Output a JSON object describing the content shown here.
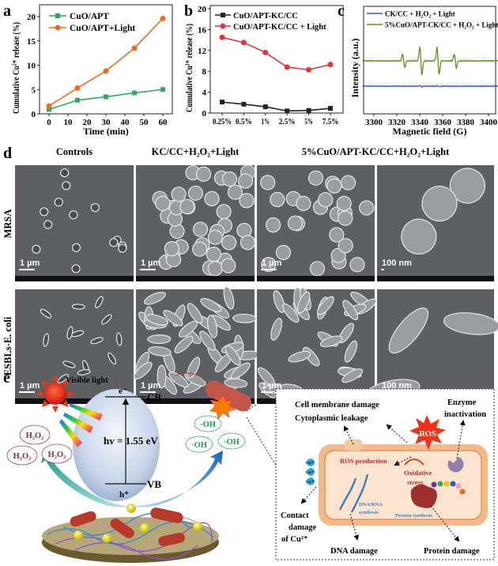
{
  "panel_labels": {
    "a": "a",
    "b": "b",
    "c": "c",
    "d": "d",
    "e": "e"
  },
  "chart_data": [
    {
      "panel": "a",
      "type": "line",
      "xlabel": "Time (min)",
      "ylabel": "Cumulative Cu²⁺ release (%)",
      "xlim": [
        -5,
        66
      ],
      "ylim": [
        0,
        22
      ],
      "xticks": [
        0,
        10,
        20,
        30,
        40,
        50,
        60
      ],
      "yticks": [
        0,
        5,
        10,
        15,
        20
      ],
      "legend": "top-left",
      "x": [
        0,
        15,
        30,
        45,
        60
      ],
      "series": [
        {
          "name": "CuO/APT",
          "color": "#2eaa5e",
          "marker": "square",
          "values": [
            0.9,
            2.8,
            3.5,
            4.3,
            5.0
          ]
        },
        {
          "name": "CuO/APT+Light",
          "color": "#f26b1d",
          "marker": "circle",
          "values": [
            1.6,
            5.3,
            8.8,
            13.5,
            19.6
          ]
        }
      ]
    },
    {
      "panel": "b",
      "type": "line",
      "xlabel": "",
      "ylabel": "Cumulative Cu²⁺ release (%)",
      "ylim": [
        0,
        20
      ],
      "yticks": [
        0,
        4,
        8,
        12,
        16,
        20
      ],
      "legend": "top",
      "categories": [
        "0.25%",
        "0.5%",
        "1%",
        "2.5%",
        "5%",
        "7.5%"
      ],
      "series": [
        {
          "name": "CuO/APT-KC/CC",
          "color": "#222222",
          "marker": "square",
          "values": [
            2.1,
            1.7,
            1.2,
            0.4,
            0.5,
            0.9
          ]
        },
        {
          "name": "CuO/APT-KC/CC + Light",
          "color": "#e8313a",
          "marker": "circle",
          "values": [
            14.5,
            13.5,
            11.6,
            8.8,
            8.3,
            9.3
          ]
        }
      ]
    },
    {
      "panel": "c",
      "type": "line",
      "xlabel": "Magnetic field (G)",
      "ylabel": "Intensity (a.u.)",
      "xlim": [
        3290,
        3410
      ],
      "xticks": [
        3300,
        3320,
        3340,
        3360,
        3380,
        3400
      ],
      "legend": "top",
      "series": [
        {
          "name": "CK/CC + H₂O₂ + Light",
          "color": "#2f5fd6",
          "peaks_G": [
            3341,
            3356
          ],
          "relative_amplitude": [
            0.08,
            0.08
          ]
        },
        {
          "name": "5%CuO/APT-CK/CC + H₂O₂ + Light",
          "color": "#5e8f1a",
          "peaks_G": [
            3326,
            3341,
            3356,
            3371
          ],
          "relative_amplitude": [
            1,
            2,
            2,
            1
          ]
        }
      ]
    }
  ],
  "sem": {
    "columns": [
      "Controls",
      "KC/CC+H₂O₂+Light",
      "5%CuO/APT-KC/CC+H₂O₂+Light"
    ],
    "rows": [
      "MRSA",
      "ESBLs-E. coli"
    ],
    "scale_bars": [
      [
        "1 µm",
        "1 µm",
        "1 µm",
        "100 nm"
      ],
      [
        "1 µm",
        "1 µm",
        "1 µm",
        "100 nm"
      ]
    ]
  },
  "scheme": {
    "visible_light": "Visible light",
    "e_minus": "e⁻",
    "cb": "CB",
    "vb": "VB",
    "h_plus": "h⁺",
    "energy": "hv = 1.55 eV",
    "h2o2": [
      "H₂O₂",
      "H₂O₂",
      "H₂O₂"
    ],
    "oh": [
      "·OH",
      "·OH",
      "·OH"
    ],
    "cell_membrane": "Cell membrane damage",
    "cytoplasmic": "Cytoplasmic leakage",
    "ros": "ROS",
    "enzyme": "Enzyme",
    "inactivation": "inactivation",
    "ros_production": "ROS production",
    "oxidative": "Oxidative",
    "stress": "stress",
    "cu_ions": [
      "Cu²⁺",
      "Cu²⁺",
      "Cu²⁺"
    ],
    "contact": "Contact",
    "damage": "damage",
    "of_cu": "of Cu²⁺",
    "dna_rna": "DNA/RNA",
    "synthesis": "synthesis",
    "protein_synthesis": "Protein synthesis",
    "dna_damage": "DNA damage",
    "protein_damage": "Protein damage"
  }
}
